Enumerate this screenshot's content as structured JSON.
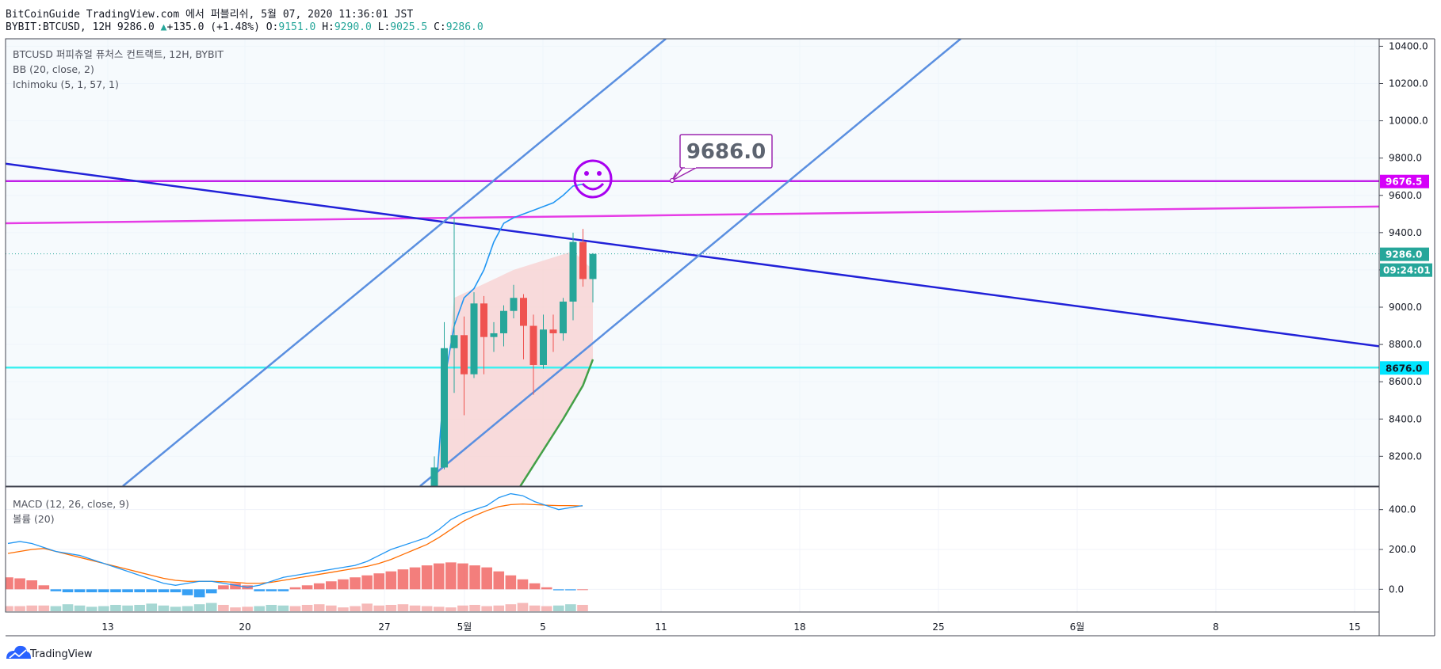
{
  "header": {
    "publish_line": "BitCoinGuide TradingView.com 에서 퍼블리쉬, 5월 07, 2020 11:36:01 JST",
    "symbol": "BYBIT:BTCUSD, 12H 9286.0",
    "change_arrow": "▲",
    "change": "+135.0 (+1.48%)",
    "o_label": "O:",
    "o_value": "9151.0",
    "h_label": "H:",
    "h_value": "9290.0",
    "l_label": "L:",
    "l_value": "9025.5",
    "c_label": "C:",
    "c_value": "9286.0"
  },
  "legend": {
    "line1": "BTCUSD 퍼피츄얼 퓨처스 컨트랙트, 12H, BYBIT",
    "line2": "BB (20, close, 2)",
    "line3": "Ichimoku (5, 1, 57, 1)",
    "macd": "MACD (12, 26, close, 9)",
    "volume": "볼륨 (20)"
  },
  "annotation": {
    "callout_value": "9686.0",
    "emoji": "smiley"
  },
  "price_labels": [
    {
      "text": "9676.5",
      "value": 9676.5,
      "color": "#d500f9"
    },
    {
      "text": "9286.0",
      "value": 9286.0,
      "color": "#26a69a"
    },
    {
      "text": "8676.0",
      "value": 8676.0,
      "color": "#00e5ff"
    }
  ],
  "countdown": "09:24:01",
  "brand": "TradingView",
  "colors": {
    "up": "#26a69a",
    "down": "#ef5350",
    "up_vol": "#90cdc8",
    "down_vol": "#f4a7a6",
    "channel": "#5a8fe0",
    "trend": "#2121d8",
    "magenta": "#e63ce6",
    "purple": "#c020e8",
    "cyan": "#3ef0f0",
    "bb": "#2196f3",
    "ichimoku": "#43a047",
    "macd": "#2196f3",
    "signal": "#ff6d00"
  },
  "chart_data": {
    "type": "candlestick",
    "timeframe": "12H",
    "x_ticks": [
      "13",
      "20",
      "27",
      "5월",
      "5",
      "11",
      "18",
      "25",
      "6월",
      "8",
      "15"
    ],
    "y_ticks": [
      10400,
      10200,
      10000,
      9800,
      9600,
      9400,
      9200,
      9000,
      8800,
      8600,
      8400,
      8200
    ],
    "ylim": [
      8040,
      10440
    ],
    "candles": [
      {
        "o": 7780,
        "h": 8200,
        "l": 7760,
        "c": 8140
      },
      {
        "o": 8140,
        "h": 8920,
        "l": 8130,
        "c": 8780
      },
      {
        "o": 8780,
        "h": 9480,
        "l": 8540,
        "c": 8850
      },
      {
        "o": 8850,
        "h": 8950,
        "l": 8420,
        "c": 8640
      },
      {
        "o": 8640,
        "h": 9080,
        "l": 8620,
        "c": 9020
      },
      {
        "o": 9020,
        "h": 9060,
        "l": 8640,
        "c": 8840
      },
      {
        "o": 8840,
        "h": 8920,
        "l": 8760,
        "c": 8860
      },
      {
        "o": 8860,
        "h": 9010,
        "l": 8790,
        "c": 8980
      },
      {
        "o": 8980,
        "h": 9120,
        "l": 8940,
        "c": 9050
      },
      {
        "o": 9050,
        "h": 9070,
        "l": 8720,
        "c": 8900
      },
      {
        "o": 8900,
        "h": 8960,
        "l": 8530,
        "c": 8690
      },
      {
        "o": 8690,
        "h": 8960,
        "l": 8670,
        "c": 8880
      },
      {
        "o": 8880,
        "h": 8960,
        "l": 8760,
        "c": 8860
      },
      {
        "o": 8860,
        "h": 9050,
        "l": 8820,
        "c": 9030
      },
      {
        "o": 9030,
        "h": 9400,
        "l": 8930,
        "c": 9350
      },
      {
        "o": 9350,
        "h": 9420,
        "l": 9110,
        "c": 9151
      },
      {
        "o": 9151,
        "h": 9290,
        "l": 9025.5,
        "c": 9286
      }
    ],
    "volume": [
      20,
      28,
      23,
      16,
      24,
      18,
      17,
      18,
      22,
      25,
      20,
      17,
      16,
      18,
      30,
      22,
      14
    ],
    "volume_history": [
      8,
      8,
      9,
      9,
      8,
      11,
      9,
      7,
      8,
      10,
      9,
      10,
      12,
      9,
      7,
      8,
      11,
      13,
      10,
      6,
      7,
      8,
      10,
      9,
      8,
      10,
      11,
      9,
      6,
      8,
      12,
      9,
      10,
      11,
      9,
      8,
      7,
      6,
      9,
      10,
      8,
      9,
      11,
      13,
      9,
      8,
      9,
      11,
      10
    ],
    "indicators": {
      "bb_upper": [
        {
          "x": 0,
          "y": 7900
        },
        {
          "x": 1,
          "y": 8600
        },
        {
          "x": 2,
          "y": 8900
        },
        {
          "x": 3,
          "y": 9050
        },
        {
          "x": 4,
          "y": 9100
        },
        {
          "x": 5,
          "y": 9200
        },
        {
          "x": 6,
          "y": 9350
        },
        {
          "x": 7,
          "y": 9450
        },
        {
          "x": 8,
          "y": 9480
        },
        {
          "x": 9,
          "y": 9500
        },
        {
          "x": 10,
          "y": 9520
        },
        {
          "x": 11,
          "y": 9540
        },
        {
          "x": 12,
          "y": 9560
        },
        {
          "x": 13,
          "y": 9600
        },
        {
          "x": 14,
          "y": 9650
        },
        {
          "x": 15,
          "y": 9660
        }
      ],
      "ichimoku_line": [
        {
          "x": 7,
          "y": 7900
        },
        {
          "x": 10,
          "y": 8150
        },
        {
          "x": 13,
          "y": 8400
        },
        {
          "x": 15,
          "y": 8580
        },
        {
          "x": 16,
          "y": 8720
        }
      ],
      "levels": {
        "purple": 9676.5,
        "cyan": 8676.0
      },
      "magenta_line": {
        "start": 9450,
        "end": 9540
      },
      "downtrend_line": {
        "start": 9770,
        "end": 8790
      }
    },
    "macd": {
      "y_ticks": [
        400,
        200,
        0
      ],
      "ylim": [
        -110,
        510
      ],
      "macd": [
        230,
        240,
        230,
        210,
        190,
        180,
        170,
        150,
        130,
        110,
        90,
        70,
        50,
        30,
        20,
        30,
        40,
        40,
        30,
        20,
        10,
        20,
        40,
        60,
        70,
        80,
        90,
        100,
        110,
        120,
        140,
        170,
        200,
        220,
        240,
        260,
        300,
        350,
        380,
        400,
        420,
        460,
        480,
        470,
        440,
        420,
        400,
        410,
        420
      ],
      "signal": [
        180,
        190,
        200,
        205,
        190,
        175,
        160,
        145,
        130,
        115,
        100,
        85,
        70,
        55,
        45,
        40,
        40,
        40,
        38,
        35,
        30,
        30,
        35,
        45,
        55,
        65,
        75,
        85,
        95,
        105,
        115,
        130,
        150,
        175,
        200,
        225,
        260,
        300,
        340,
        370,
        395,
        415,
        425,
        428,
        425,
        422,
        420,
        420,
        418
      ],
      "histogram": [
        60,
        55,
        45,
        20,
        -10,
        -15,
        -15,
        -15,
        -15,
        -15,
        -15,
        -15,
        -15,
        -15,
        -15,
        -30,
        -40,
        -20,
        20,
        30,
        20,
        -10,
        -10,
        -10,
        10,
        20,
        30,
        40,
        50,
        60,
        70,
        80,
        90,
        100,
        110,
        120,
        130,
        135,
        130,
        120,
        110,
        90,
        70,
        50,
        30,
        10,
        -5,
        -5,
        0
      ]
    }
  }
}
